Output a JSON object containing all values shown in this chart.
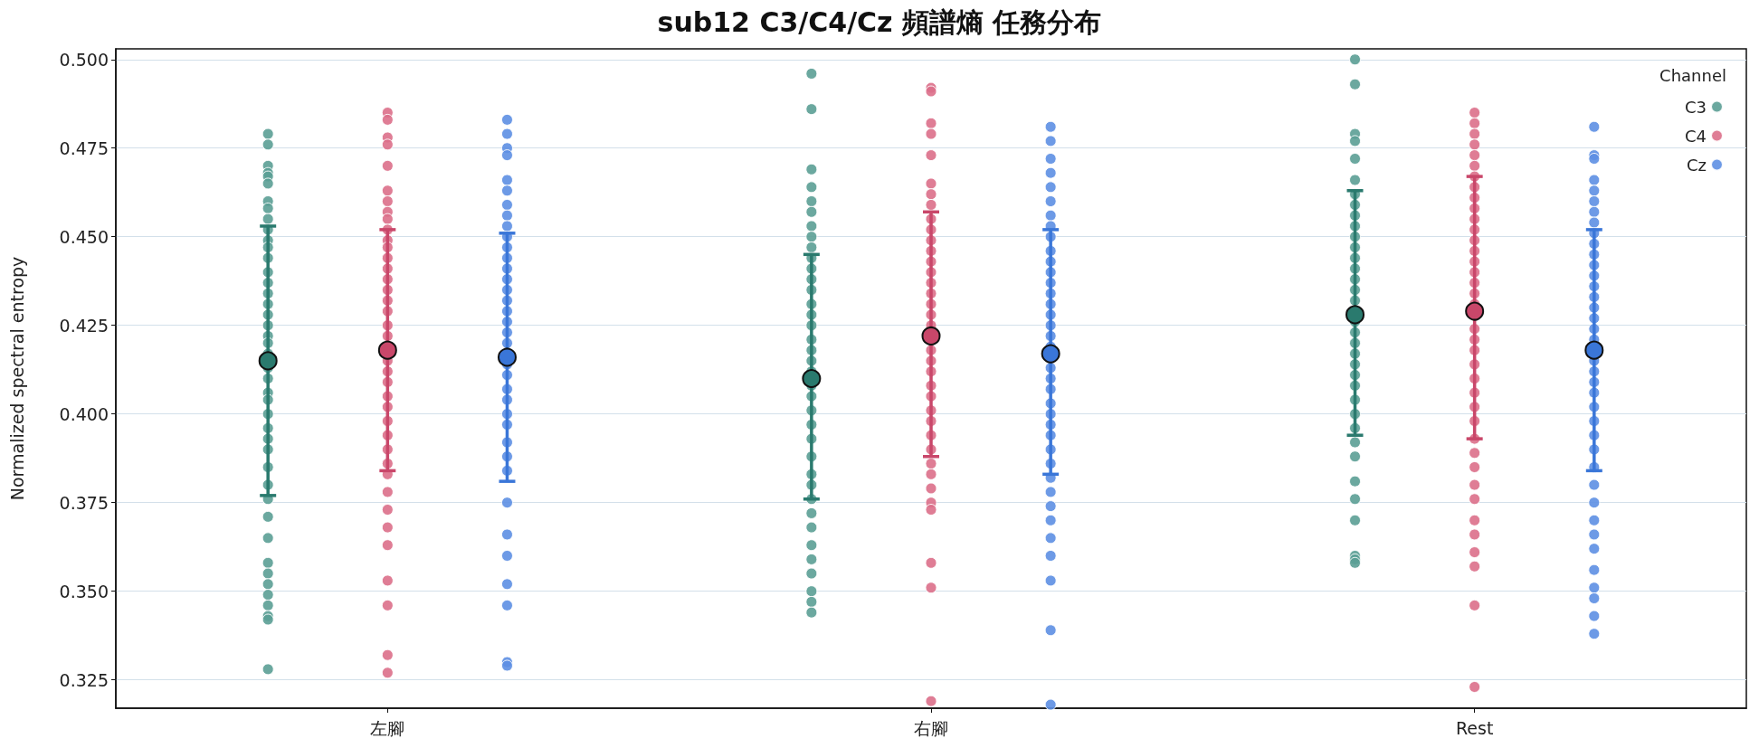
{
  "chart_data": {
    "type": "scatter",
    "title": "sub12 C3/C4/Cz 頻譜熵 任務分布",
    "ylabel": "Normalized spectral entropy",
    "legend_title": "Channel",
    "categories": [
      "左腳",
      "右腳",
      "Rest"
    ],
    "ylim": [
      0.317,
      0.503
    ],
    "yticks": [
      0.325,
      {
        "value": 0.35,
        "label": "0.350"
      },
      0.375,
      {
        "value": 0.4,
        "label": "0.400"
      },
      0.425,
      {
        "value": 0.45,
        "label": "0.450"
      },
      0.475,
      {
        "value": 0.5,
        "label": "0.500"
      }
    ],
    "grid": "y",
    "legend": "top right",
    "marker": "circle",
    "series": [
      {
        "name": "C3",
        "color": "#5b9e95",
        "x": [
          "左腳",
          "左腳",
          "左腳",
          "左腳",
          "左腳",
          "左腳",
          "左腳",
          "左腳",
          "左腳",
          "左腳",
          "左腳",
          "左腳",
          "左腳",
          "左腳",
          "左腳",
          "左腳",
          "左腳",
          "左腳",
          "左腳",
          "左腳",
          "左腳",
          "左腳",
          "左腳",
          "左腳",
          "左腳",
          "左腳",
          "左腳",
          "左腳",
          "左腳",
          "左腳",
          "左腳",
          "左腳",
          "左腳",
          "左腳",
          "左腳",
          "左腳",
          "左腳",
          "左腳",
          "左腳",
          "左腳",
          "左腳",
          "左腳",
          "左腳",
          "右腳",
          "右腳",
          "右腳",
          "右腳",
          "右腳",
          "右腳",
          "右腳",
          "右腳",
          "右腳",
          "右腳",
          "右腳",
          "右腳",
          "右腳",
          "右腳",
          "右腳",
          "右腳",
          "右腳",
          "右腳",
          "右腳",
          "右腳",
          "右腳",
          "右腳",
          "右腳",
          "右腳",
          "右腳",
          "右腳",
          "右腳",
          "右腳",
          "右腳",
          "右腳",
          "右腳",
          "右腳",
          "右腳",
          "右腳",
          "右腳",
          "右腳",
          "右腳",
          "Rest",
          "Rest",
          "Rest",
          "Rest",
          "Rest",
          "Rest",
          "Rest",
          "Rest",
          "Rest",
          "Rest",
          "Rest",
          "Rest",
          "Rest",
          "Rest",
          "Rest",
          "Rest",
          "Rest",
          "Rest",
          "Rest",
          "Rest",
          "Rest",
          "Rest",
          "Rest",
          "Rest",
          "Rest",
          "Rest",
          "Rest",
          "Rest",
          "Rest",
          "Rest",
          "Rest",
          "Rest",
          "Rest",
          "Rest",
          "Rest"
        ],
        "values": [
          0.479,
          0.476,
          0.47,
          0.468,
          0.467,
          0.465,
          0.46,
          0.458,
          0.455,
          0.452,
          0.449,
          0.447,
          0.444,
          0.44,
          0.437,
          0.434,
          0.431,
          0.428,
          0.425,
          0.422,
          0.42,
          0.417,
          0.413,
          0.41,
          0.406,
          0.404,
          0.4,
          0.396,
          0.393,
          0.39,
          0.385,
          0.38,
          0.376,
          0.371,
          0.365,
          0.358,
          0.355,
          0.352,
          0.349,
          0.346,
          0.343,
          0.342,
          0.328,
          0.496,
          0.486,
          0.469,
          0.464,
          0.46,
          0.457,
          0.453,
          0.45,
          0.447,
          0.444,
          0.441,
          0.438,
          0.435,
          0.431,
          0.428,
          0.425,
          0.421,
          0.418,
          0.415,
          0.412,
          0.408,
          0.405,
          0.401,
          0.397,
          0.393,
          0.388,
          0.383,
          0.38,
          0.376,
          0.372,
          0.368,
          0.363,
          0.359,
          0.355,
          0.35,
          0.347,
          0.344,
          0.5,
          0.493,
          0.479,
          0.477,
          0.472,
          0.466,
          0.462,
          0.459,
          0.456,
          0.453,
          0.45,
          0.447,
          0.444,
          0.441,
          0.438,
          0.435,
          0.432,
          0.426,
          0.423,
          0.42,
          0.417,
          0.414,
          0.411,
          0.408,
          0.404,
          0.4,
          0.396,
          0.392,
          0.388,
          0.381,
          0.376,
          0.37,
          0.36,
          0.359,
          0.358
        ]
      },
      {
        "name": "C4",
        "color": "#db6f8a",
        "x": [
          "左腳",
          "左腳",
          "左腳",
          "左腳",
          "左腳",
          "左腳",
          "左腳",
          "左腳",
          "左腳",
          "左腳",
          "左腳",
          "左腳",
          "左腳",
          "左腳",
          "左腳",
          "左腳",
          "左腳",
          "左腳",
          "左腳",
          "左腳",
          "左腳",
          "左腳",
          "左腳",
          "左腳",
          "左腳",
          "左腳",
          "左腳",
          "左腳",
          "左腳",
          "左腳",
          "左腳",
          "左腳",
          "左腳",
          "左腳",
          "左腳",
          "左腳",
          "左腳",
          "左腳",
          "右腳",
          "右腳",
          "右腳",
          "右腳",
          "右腳",
          "右腳",
          "右腳",
          "右腳",
          "右腳",
          "右腳",
          "右腳",
          "右腳",
          "右腳",
          "右腳",
          "右腳",
          "右腳",
          "右腳",
          "右腳",
          "右腳",
          "右腳",
          "右腳",
          "右腳",
          "右腳",
          "右腳",
          "右腳",
          "右腳",
          "右腳",
          "右腳",
          "右腳",
          "右腳",
          "右腳",
          "右腳",
          "右腳",
          "右腳",
          "右腳",
          "右腳",
          "Rest",
          "Rest",
          "Rest",
          "Rest",
          "Rest",
          "Rest",
          "Rest",
          "Rest",
          "Rest",
          "Rest",
          "Rest",
          "Rest",
          "Rest",
          "Rest",
          "Rest",
          "Rest",
          "Rest",
          "Rest",
          "Rest",
          "Rest",
          "Rest",
          "Rest",
          "Rest",
          "Rest",
          "Rest",
          "Rest",
          "Rest",
          "Rest",
          "Rest",
          "Rest",
          "Rest",
          "Rest",
          "Rest",
          "Rest",
          "Rest",
          "Rest",
          "Rest",
          "Rest"
        ],
        "values": [
          0.485,
          0.483,
          0.478,
          0.476,
          0.47,
          0.463,
          0.46,
          0.457,
          0.455,
          0.452,
          0.449,
          0.447,
          0.444,
          0.441,
          0.438,
          0.435,
          0.432,
          0.429,
          0.425,
          0.422,
          0.415,
          0.412,
          0.409,
          0.405,
          0.402,
          0.398,
          0.394,
          0.39,
          0.386,
          0.383,
          0.378,
          0.373,
          0.368,
          0.363,
          0.353,
          0.346,
          0.332,
          0.327,
          0.492,
          0.491,
          0.482,
          0.479,
          0.473,
          0.465,
          0.462,
          0.459,
          0.455,
          0.452,
          0.449,
          0.446,
          0.443,
          0.44,
          0.437,
          0.434,
          0.431,
          0.428,
          0.425,
          0.418,
          0.415,
          0.412,
          0.408,
          0.405,
          0.401,
          0.398,
          0.394,
          0.39,
          0.386,
          0.383,
          0.379,
          0.375,
          0.373,
          0.358,
          0.351,
          0.319,
          0.485,
          0.482,
          0.479,
          0.476,
          0.473,
          0.47,
          0.467,
          0.464,
          0.461,
          0.458,
          0.455,
          0.452,
          0.449,
          0.446,
          0.443,
          0.44,
          0.437,
          0.434,
          0.431,
          0.424,
          0.421,
          0.418,
          0.414,
          0.41,
          0.406,
          0.402,
          0.398,
          0.393,
          0.389,
          0.385,
          0.38,
          0.376,
          0.37,
          0.366,
          0.361,
          0.357,
          0.346,
          0.323
        ]
      },
      {
        "name": "Cz",
        "color": "#5d8fe3",
        "x": [
          "左腳",
          "左腳",
          "左腳",
          "左腳",
          "左腳",
          "左腳",
          "左腳",
          "左腳",
          "左腳",
          "左腳",
          "左腳",
          "左腳",
          "左腳",
          "左腳",
          "左腳",
          "左腳",
          "左腳",
          "左腳",
          "左腳",
          "左腳",
          "左腳",
          "左腳",
          "左腳",
          "左腳",
          "左腳",
          "左腳",
          "左腳",
          "左腳",
          "左腳",
          "左腳",
          "左腳",
          "左腳",
          "左腳",
          "左腳",
          "左腳",
          "左腳",
          "右腳",
          "右腳",
          "右腳",
          "右腳",
          "右腳",
          "右腳",
          "右腳",
          "右腳",
          "右腳",
          "右腳",
          "右腳",
          "右腳",
          "右腳",
          "右腳",
          "右腳",
          "右腳",
          "右腳",
          "右腳",
          "右腳",
          "右腳",
          "右腳",
          "右腳",
          "右腳",
          "右腳",
          "右腳",
          "右腳",
          "右腳",
          "右腳",
          "右腳",
          "右腳",
          "右腳",
          "右腳",
          "右腳",
          "右腳",
          "右腳",
          "右腳",
          "右腳",
          "Rest",
          "Rest",
          "Rest",
          "Rest",
          "Rest",
          "Rest",
          "Rest",
          "Rest",
          "Rest",
          "Rest",
          "Rest",
          "Rest",
          "Rest",
          "Rest",
          "Rest",
          "Rest",
          "Rest",
          "Rest",
          "Rest",
          "Rest",
          "Rest",
          "Rest",
          "Rest",
          "Rest",
          "Rest",
          "Rest",
          "Rest",
          "Rest",
          "Rest",
          "Rest",
          "Rest",
          "Rest",
          "Rest",
          "Rest",
          "Rest",
          "Rest",
          "Rest",
          "Rest"
        ],
        "values": [
          0.483,
          0.479,
          0.475,
          0.473,
          0.466,
          0.463,
          0.459,
          0.456,
          0.453,
          0.45,
          0.447,
          0.444,
          0.441,
          0.438,
          0.435,
          0.432,
          0.429,
          0.426,
          0.423,
          0.42,
          0.414,
          0.411,
          0.407,
          0.404,
          0.4,
          0.397,
          0.392,
          0.388,
          0.384,
          0.375,
          0.366,
          0.36,
          0.352,
          0.346,
          0.33,
          0.329,
          0.481,
          0.477,
          0.472,
          0.468,
          0.464,
          0.46,
          0.456,
          0.453,
          0.45,
          0.446,
          0.443,
          0.44,
          0.437,
          0.434,
          0.431,
          0.428,
          0.425,
          0.422,
          0.419,
          0.413,
          0.41,
          0.407,
          0.403,
          0.4,
          0.397,
          0.394,
          0.39,
          0.386,
          0.382,
          0.378,
          0.374,
          0.37,
          0.365,
          0.36,
          0.353,
          0.339,
          0.318,
          0.481,
          0.473,
          0.472,
          0.466,
          0.463,
          0.46,
          0.457,
          0.454,
          0.451,
          0.448,
          0.445,
          0.442,
          0.439,
          0.436,
          0.433,
          0.43,
          0.427,
          0.424,
          0.421,
          0.415,
          0.412,
          0.409,
          0.406,
          0.402,
          0.398,
          0.394,
          0.39,
          0.385,
          0.38,
          0.375,
          0.37,
          0.366,
          0.362,
          0.356,
          0.351,
          0.348,
          0.343,
          0.338
        ]
      },
      {
        "color": "#2a7a6e",
        "values": [
          0.415,
          0.41,
          0.428
        ],
        "errors": [
          [
            0.377,
            0.453
          ],
          [
            0.376,
            0.445
          ],
          [
            0.394,
            0.463
          ]
        ]
      },
      {
        "color": "#c9476a",
        "values": [
          0.418,
          0.422,
          0.429
        ],
        "errors": [
          [
            0.384,
            0.452
          ],
          [
            0.388,
            0.457
          ],
          [
            0.393,
            0.467
          ]
        ]
      },
      {
        "color": "#3a76d8",
        "values": [
          0.416,
          0.417,
          0.418
        ],
        "errors": [
          [
            0.381,
            0.451
          ],
          [
            0.383,
            0.452
          ],
          [
            0.384,
            0.452
          ]
        ]
      }
    ]
  }
}
